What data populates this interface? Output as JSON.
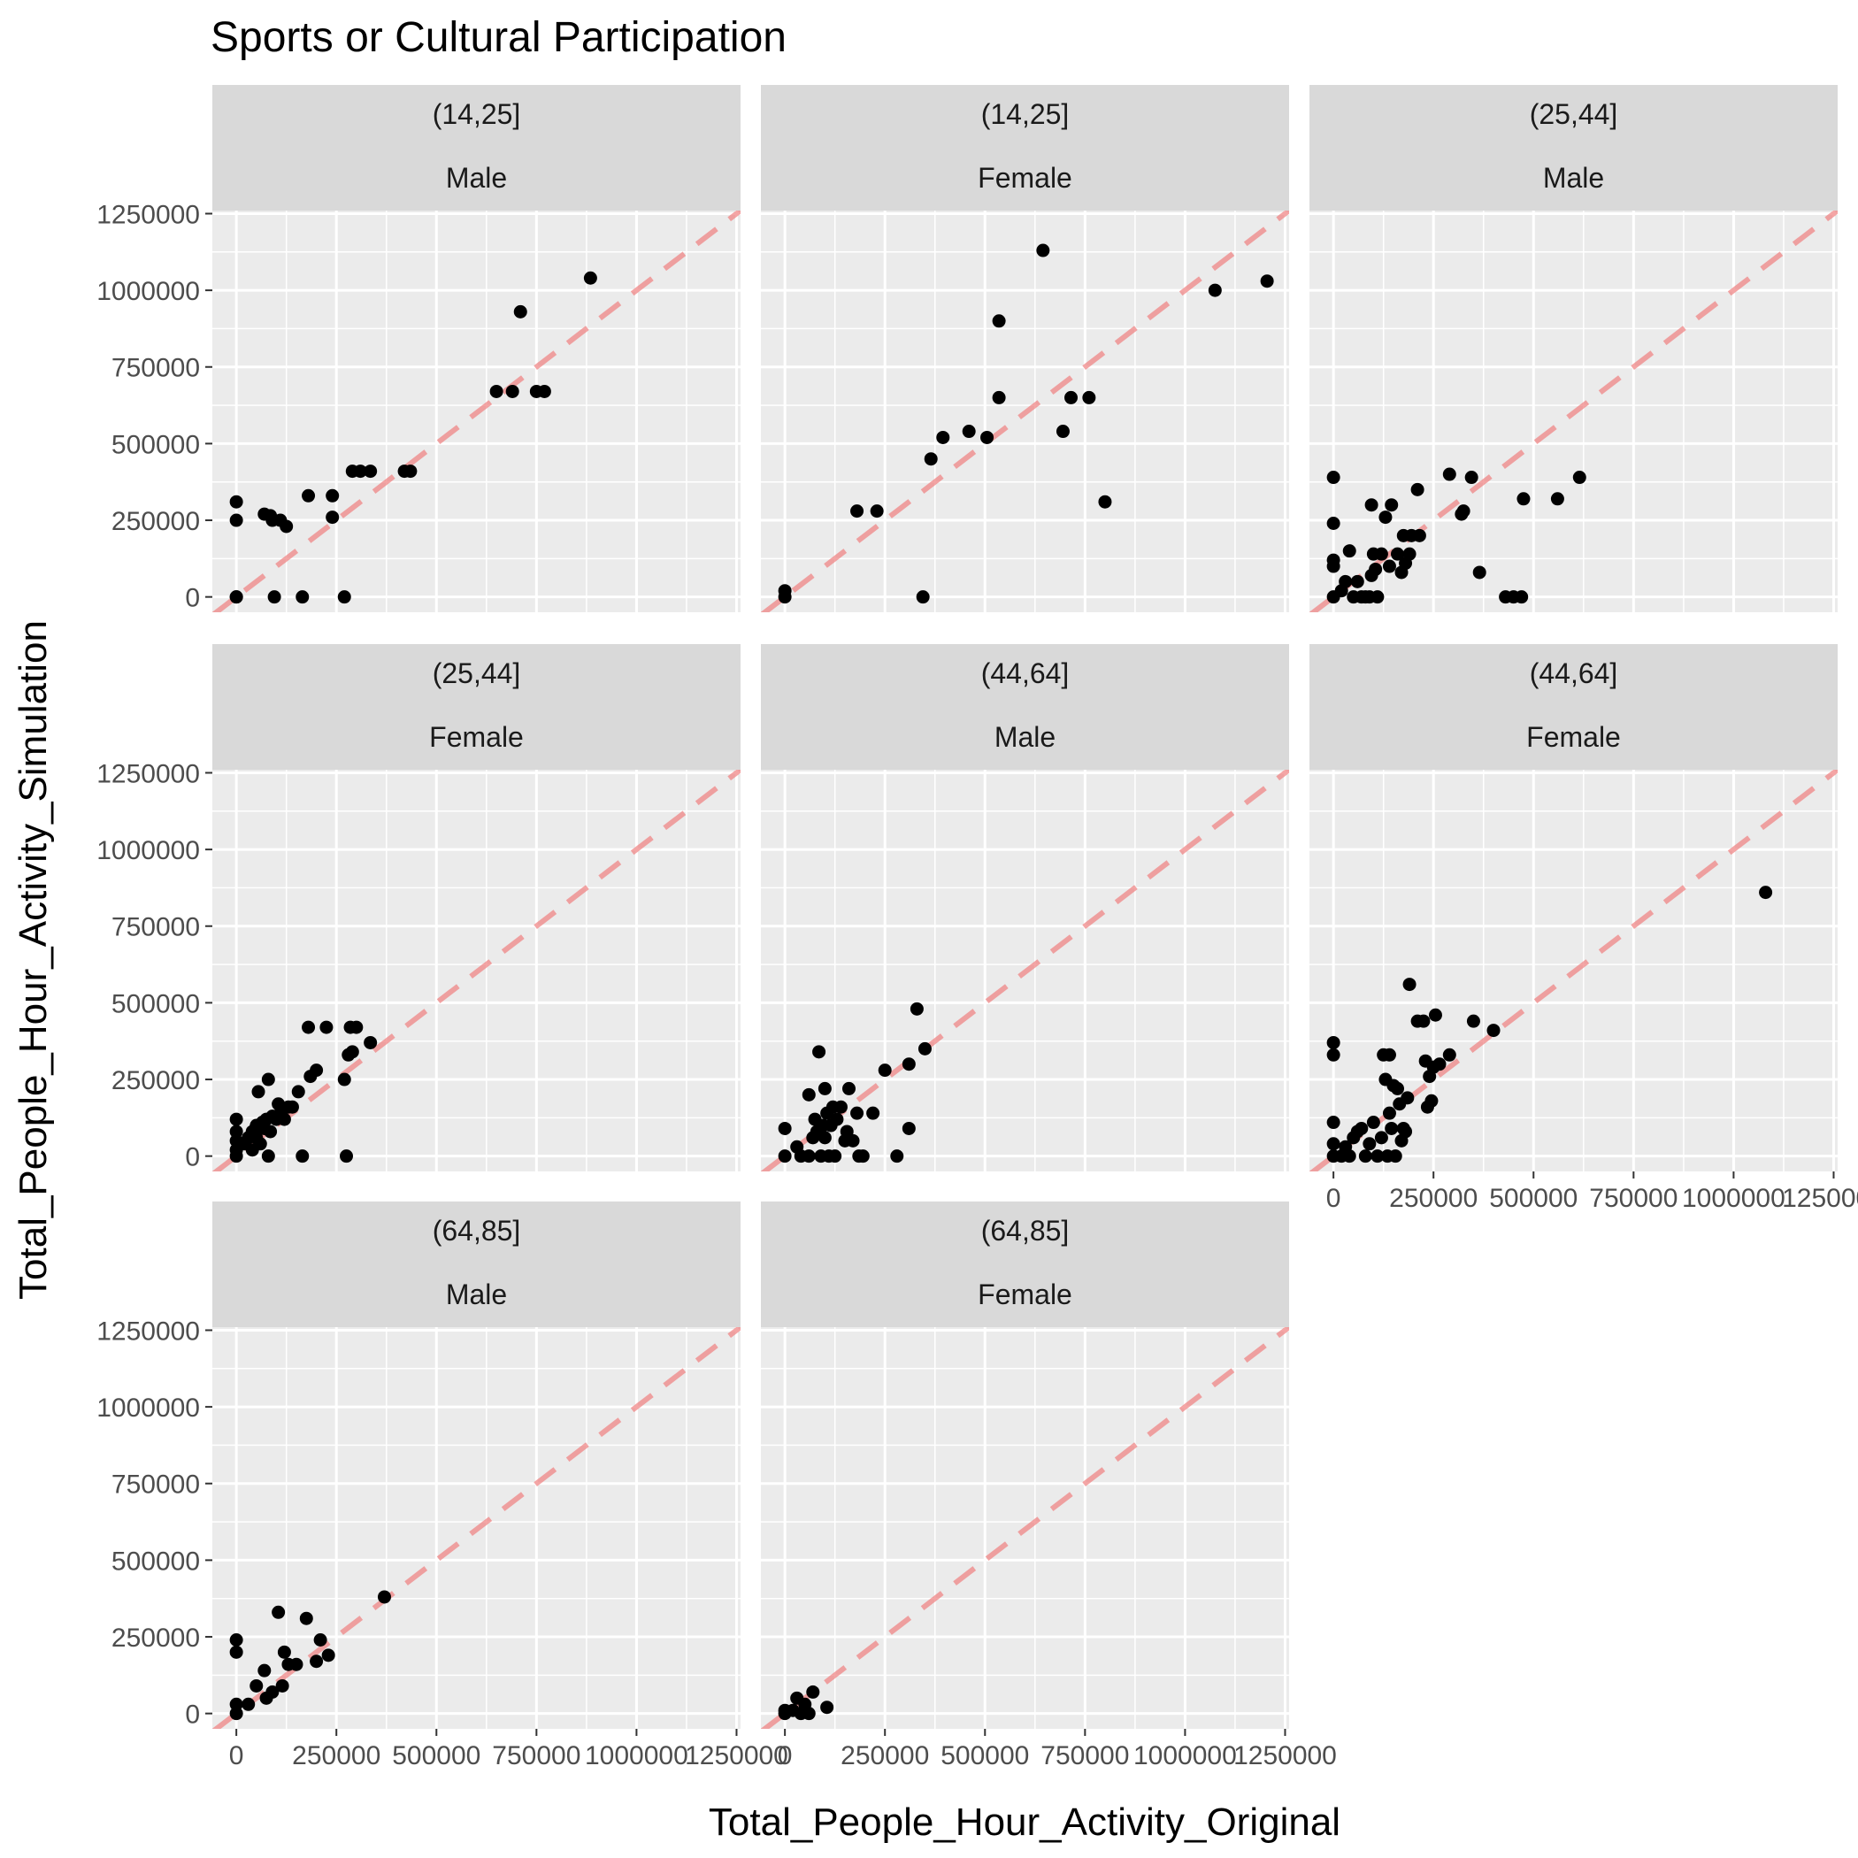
{
  "chart_data": {
    "type": "scatter",
    "title": "Sports or Cultural Participation",
    "xlabel": "Total_People_Hour_Activity_Original",
    "ylabel": "Total_People_Hour_Activity_Simulation",
    "xlim": [
      -60000,
      1260000
    ],
    "ylim": [
      -50000,
      1260000
    ],
    "x_ticks": [
      0,
      250000,
      500000,
      750000,
      1000000,
      1250000
    ],
    "y_ticks": [
      0,
      250000,
      500000,
      750000,
      1000000,
      1250000
    ],
    "reference_line": {
      "slope": 1,
      "intercept": 0,
      "style": "dashed",
      "color": "#f08080"
    },
    "grid": true,
    "panel_background": "#ebebeb",
    "strip_background": "#d9d9d9",
    "point_color": "#000000",
    "panels": [
      {
        "strip": [
          "(14,25]",
          "Male"
        ],
        "points": [
          [
            0,
            0
          ],
          [
            0,
            0
          ],
          [
            0,
            310000
          ],
          [
            0,
            250000
          ],
          [
            70000,
            270000
          ],
          [
            85000,
            265000
          ],
          [
            90000,
            250000
          ],
          [
            110000,
            250000
          ],
          [
            125000,
            230000
          ],
          [
            95000,
            0
          ],
          [
            165000,
            0
          ],
          [
            180000,
            330000
          ],
          [
            240000,
            330000
          ],
          [
            240000,
            260000
          ],
          [
            270000,
            0
          ],
          [
            290000,
            410000
          ],
          [
            310000,
            410000
          ],
          [
            335000,
            410000
          ],
          [
            420000,
            410000
          ],
          [
            435000,
            410000
          ],
          [
            650000,
            670000
          ],
          [
            690000,
            670000
          ],
          [
            710000,
            930000
          ],
          [
            750000,
            670000
          ],
          [
            770000,
            670000
          ],
          [
            885000,
            1040000
          ]
        ]
      },
      {
        "strip": [
          "(14,25]",
          "Female"
        ],
        "points": [
          [
            0,
            0
          ],
          [
            0,
            20000
          ],
          [
            180000,
            280000
          ],
          [
            230000,
            280000
          ],
          [
            345000,
            0
          ],
          [
            365000,
            450000
          ],
          [
            395000,
            520000
          ],
          [
            460000,
            540000
          ],
          [
            505000,
            520000
          ],
          [
            535000,
            900000
          ],
          [
            535000,
            650000
          ],
          [
            645000,
            1130000
          ],
          [
            695000,
            540000
          ],
          [
            715000,
            650000
          ],
          [
            760000,
            650000
          ],
          [
            800000,
            310000
          ],
          [
            1075000,
            1000000
          ],
          [
            1205000,
            1030000
          ]
        ]
      },
      {
        "strip": [
          "(25,44]",
          "Male"
        ],
        "points": [
          [
            0,
            0
          ],
          [
            0,
            390000
          ],
          [
            0,
            240000
          ],
          [
            0,
            120000
          ],
          [
            0,
            100000
          ],
          [
            20000,
            20000
          ],
          [
            30000,
            50000
          ],
          [
            40000,
            150000
          ],
          [
            50000,
            0
          ],
          [
            60000,
            50000
          ],
          [
            70000,
            0
          ],
          [
            80000,
            0
          ],
          [
            90000,
            0
          ],
          [
            95000,
            300000
          ],
          [
            100000,
            140000
          ],
          [
            95000,
            70000
          ],
          [
            105000,
            90000
          ],
          [
            110000,
            0
          ],
          [
            120000,
            140000
          ],
          [
            130000,
            260000
          ],
          [
            140000,
            100000
          ],
          [
            145000,
            300000
          ],
          [
            160000,
            140000
          ],
          [
            170000,
            80000
          ],
          [
            175000,
            200000
          ],
          [
            180000,
            110000
          ],
          [
            190000,
            140000
          ],
          [
            195000,
            200000
          ],
          [
            210000,
            350000
          ],
          [
            215000,
            200000
          ],
          [
            290000,
            400000
          ],
          [
            320000,
            270000
          ],
          [
            325000,
            280000
          ],
          [
            345000,
            390000
          ],
          [
            365000,
            80000
          ],
          [
            430000,
            0
          ],
          [
            450000,
            0
          ],
          [
            470000,
            0
          ],
          [
            475000,
            320000
          ],
          [
            560000,
            320000
          ],
          [
            615000,
            390000
          ]
        ]
      },
      {
        "strip": [
          "(25,44]",
          "Female"
        ],
        "points": [
          [
            0,
            120000
          ],
          [
            0,
            80000
          ],
          [
            0,
            50000
          ],
          [
            0,
            20000
          ],
          [
            0,
            0
          ],
          [
            20000,
            40000
          ],
          [
            30000,
            60000
          ],
          [
            40000,
            80000
          ],
          [
            40000,
            20000
          ],
          [
            50000,
            100000
          ],
          [
            50000,
            60000
          ],
          [
            55000,
            210000
          ],
          [
            60000,
            40000
          ],
          [
            65000,
            110000
          ],
          [
            70000,
            90000
          ],
          [
            75000,
            120000
          ],
          [
            80000,
            250000
          ],
          [
            80000,
            0
          ],
          [
            85000,
            80000
          ],
          [
            90000,
            130000
          ],
          [
            100000,
            120000
          ],
          [
            105000,
            170000
          ],
          [
            110000,
            140000
          ],
          [
            120000,
            120000
          ],
          [
            130000,
            160000
          ],
          [
            140000,
            160000
          ],
          [
            155000,
            210000
          ],
          [
            165000,
            0
          ],
          [
            180000,
            420000
          ],
          [
            185000,
            260000
          ],
          [
            200000,
            280000
          ],
          [
            225000,
            420000
          ],
          [
            270000,
            250000
          ],
          [
            275000,
            0
          ],
          [
            280000,
            330000
          ],
          [
            285000,
            420000
          ],
          [
            290000,
            340000
          ],
          [
            300000,
            420000
          ],
          [
            335000,
            370000
          ]
        ]
      },
      {
        "strip": [
          "(44,64]",
          "Male"
        ],
        "points": [
          [
            0,
            90000
          ],
          [
            0,
            0
          ],
          [
            30000,
            30000
          ],
          [
            40000,
            0
          ],
          [
            60000,
            200000
          ],
          [
            60000,
            0
          ],
          [
            70000,
            60000
          ],
          [
            75000,
            120000
          ],
          [
            80000,
            80000
          ],
          [
            85000,
            340000
          ],
          [
            90000,
            0
          ],
          [
            95000,
            100000
          ],
          [
            100000,
            220000
          ],
          [
            100000,
            60000
          ],
          [
            105000,
            140000
          ],
          [
            110000,
            0
          ],
          [
            115000,
            100000
          ],
          [
            120000,
            160000
          ],
          [
            125000,
            0
          ],
          [
            130000,
            120000
          ],
          [
            140000,
            160000
          ],
          [
            150000,
            50000
          ],
          [
            155000,
            80000
          ],
          [
            160000,
            220000
          ],
          [
            170000,
            50000
          ],
          [
            180000,
            140000
          ],
          [
            185000,
            0
          ],
          [
            195000,
            0
          ],
          [
            220000,
            140000
          ],
          [
            250000,
            280000
          ],
          [
            280000,
            0
          ],
          [
            310000,
            300000
          ],
          [
            310000,
            90000
          ],
          [
            330000,
            480000
          ],
          [
            350000,
            350000
          ]
        ]
      },
      {
        "strip": [
          "(44,64]",
          "Female"
        ],
        "points": [
          [
            0,
            370000
          ],
          [
            0,
            330000
          ],
          [
            0,
            110000
          ],
          [
            0,
            40000
          ],
          [
            0,
            0
          ],
          [
            20000,
            0
          ],
          [
            30000,
            30000
          ],
          [
            40000,
            0
          ],
          [
            50000,
            60000
          ],
          [
            60000,
            80000
          ],
          [
            70000,
            90000
          ],
          [
            80000,
            0
          ],
          [
            90000,
            40000
          ],
          [
            100000,
            110000
          ],
          [
            110000,
            0
          ],
          [
            120000,
            60000
          ],
          [
            125000,
            330000
          ],
          [
            130000,
            250000
          ],
          [
            135000,
            0
          ],
          [
            140000,
            330000
          ],
          [
            140000,
            140000
          ],
          [
            145000,
            90000
          ],
          [
            150000,
            230000
          ],
          [
            155000,
            0
          ],
          [
            160000,
            220000
          ],
          [
            165000,
            170000
          ],
          [
            170000,
            50000
          ],
          [
            175000,
            90000
          ],
          [
            180000,
            80000
          ],
          [
            185000,
            190000
          ],
          [
            190000,
            560000
          ],
          [
            210000,
            440000
          ],
          [
            225000,
            440000
          ],
          [
            230000,
            310000
          ],
          [
            235000,
            160000
          ],
          [
            240000,
            260000
          ],
          [
            245000,
            180000
          ],
          [
            250000,
            290000
          ],
          [
            255000,
            460000
          ],
          [
            265000,
            300000
          ],
          [
            290000,
            330000
          ],
          [
            350000,
            440000
          ],
          [
            400000,
            410000
          ],
          [
            1080000,
            860000
          ]
        ]
      },
      {
        "strip": [
          "(64,85]",
          "Male"
        ],
        "points": [
          [
            0,
            240000
          ],
          [
            0,
            200000
          ],
          [
            0,
            30000
          ],
          [
            0,
            0
          ],
          [
            30000,
            30000
          ],
          [
            50000,
            90000
          ],
          [
            70000,
            140000
          ],
          [
            75000,
            50000
          ],
          [
            90000,
            70000
          ],
          [
            105000,
            330000
          ],
          [
            115000,
            90000
          ],
          [
            120000,
            200000
          ],
          [
            130000,
            160000
          ],
          [
            150000,
            160000
          ],
          [
            175000,
            310000
          ],
          [
            200000,
            170000
          ],
          [
            210000,
            240000
          ],
          [
            230000,
            190000
          ],
          [
            370000,
            380000
          ]
        ]
      },
      {
        "strip": [
          "(64,85]",
          "Female"
        ],
        "points": [
          [
            0,
            0
          ],
          [
            0,
            10000
          ],
          [
            20000,
            10000
          ],
          [
            30000,
            50000
          ],
          [
            40000,
            0
          ],
          [
            50000,
            30000
          ],
          [
            60000,
            0
          ],
          [
            70000,
            70000
          ],
          [
            105000,
            20000
          ]
        ]
      }
    ]
  }
}
